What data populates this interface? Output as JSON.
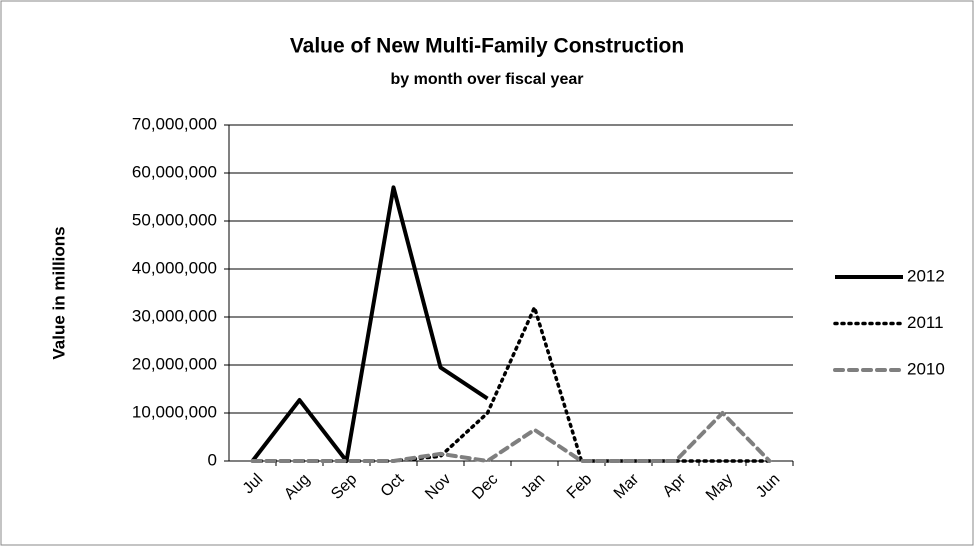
{
  "chart_data": {
    "type": "line",
    "title": "Value of New Multi-Family Construction",
    "subtitle": "by month over fiscal year",
    "y_label": "Value in millions",
    "categories": [
      "Jul",
      "Aug",
      "Sep",
      "Oct",
      "Nov",
      "Dec",
      "Jan",
      "Feb",
      "Mar",
      "Apr",
      "May",
      "Jun"
    ],
    "series": [
      {
        "name": "2012",
        "color": "#000000",
        "style": "solid",
        "values": [
          0,
          12700000,
          0,
          57000000,
          19500000,
          13000000,
          null,
          null,
          null,
          null,
          null,
          null
        ]
      },
      {
        "name": "2011",
        "color": "#000000",
        "style": "dotted",
        "values": [
          0,
          0,
          0,
          0,
          1000000,
          10000000,
          32000000,
          0,
          0,
          0,
          0,
          0
        ]
      },
      {
        "name": "2010",
        "color": "#7f7f7f",
        "style": "dashed",
        "values": [
          0,
          0,
          0,
          0,
          1500000,
          0,
          6500000,
          0,
          0,
          0,
          10000000,
          0
        ]
      }
    ],
    "ylim": [
      0,
      70000000
    ],
    "yticks": [
      0,
      {
        "value": 10000000,
        "label": "10,000,000"
      },
      {
        "value": 20000000,
        "label": "20,000,000"
      },
      {
        "value": 30000000,
        "label": "30,000,000"
      },
      {
        "value": 40000000,
        "label": "40,000,000"
      },
      {
        "value": 50000000,
        "label": "50,000,000"
      },
      {
        "value": 60000000,
        "label": "60,000,000"
      },
      {
        "value": 70000000,
        "label": "70,000,000"
      }
    ],
    "grid": true,
    "legend": "right"
  }
}
